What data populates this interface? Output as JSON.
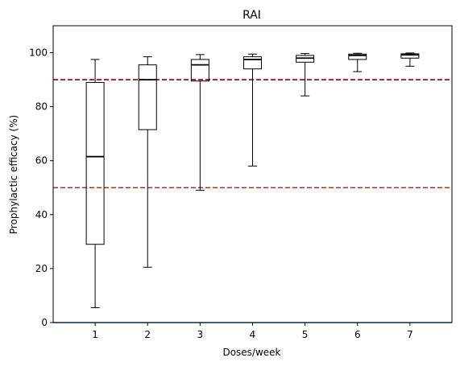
{
  "chart_data": {
    "type": "box",
    "title": "RAI",
    "xlabel": "Doses/week",
    "ylabel": "Prophylactic efficacy (%)",
    "categories": [
      "1",
      "2",
      "3",
      "4",
      "5",
      "6",
      "7"
    ],
    "ylim": [
      0,
      110
    ],
    "yticks": [
      "0",
      "20",
      "40",
      "60",
      "80",
      "100"
    ],
    "grid": false,
    "boxes": [
      {
        "category": "1",
        "whisker_low": 5.5,
        "q1": 29,
        "median": 61.5,
        "q3": 89,
        "whisker_high": 97.5
      },
      {
        "category": "2",
        "whisker_low": 20.5,
        "q1": 71.5,
        "median": 90,
        "q3": 95.5,
        "whisker_high": 98.5
      },
      {
        "category": "3",
        "whisker_low": 49,
        "q1": 89.5,
        "median": 95.5,
        "q3": 97.5,
        "whisker_high": 99.3
      },
      {
        "category": "4",
        "whisker_low": 58,
        "q1": 94,
        "median": 97.5,
        "q3": 98.5,
        "whisker_high": 99.5
      },
      {
        "category": "5",
        "whisker_low": 84,
        "q1": 96.5,
        "median": 98,
        "q3": 99,
        "whisker_high": 99.7
      },
      {
        "category": "6",
        "whisker_low": 93,
        "q1": 97.5,
        "median": 99,
        "q3": 99.5,
        "whisker_high": 99.8
      },
      {
        "category": "7",
        "whisker_low": 95,
        "q1": 98,
        "median": 99.2,
        "q3": 99.6,
        "whisker_high": 99.9
      }
    ],
    "reference_lines": [
      {
        "y": 90,
        "color": "#8b0000",
        "style": "dashed"
      },
      {
        "y": 50,
        "color": "#d62728",
        "style": "dashed"
      }
    ],
    "baseline": {
      "y": 0,
      "color": "#1f77b4"
    },
    "colors": {
      "box": "#000000",
      "axis": "#000000"
    }
  }
}
